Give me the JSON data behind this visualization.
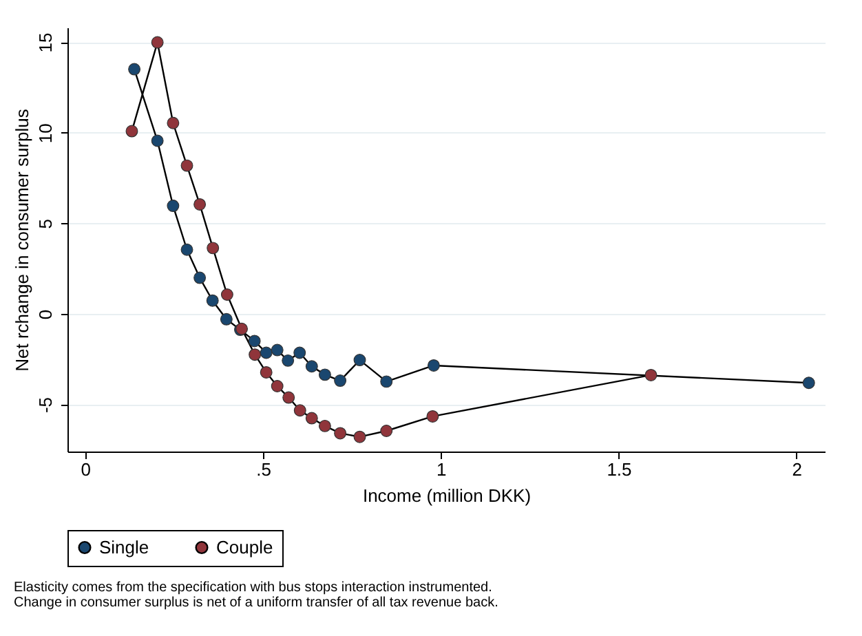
{
  "chart_data": {
    "type": "line",
    "xlabel": "Income (million DKK)",
    "ylabel": "Net rchange in consumer surplus",
    "xlim": [
      -0.05,
      2.08
    ],
    "xticks": [
      0,
      {
        "value": 0.5,
        "label": ".5"
      },
      1,
      1.5,
      2
    ],
    "ylim": [
      -7.6,
      15.8
    ],
    "yticks": [
      -5,
      0,
      5,
      10,
      15
    ],
    "grid": "y",
    "legend": "bottom",
    "marker": "circle",
    "series": [
      {
        "name": "Single",
        "color": "#1a476f",
        "x": [
          0.138,
          0.203,
          0.247,
          0.286,
          0.322,
          0.358,
          0.397,
          0.436,
          0.476,
          0.509,
          0.54,
          0.57,
          0.603,
          0.637,
          0.674,
          0.717,
          0.772,
          0.847,
          0.98,
          2.035
        ],
        "values": [
          13.5,
          9.55,
          5.96,
          3.54,
          1.99,
          0.73,
          -0.3,
          -0.88,
          -1.5,
          -2.15,
          -2.0,
          -2.58,
          -2.15,
          -2.9,
          -3.36,
          -3.69,
          -2.55,
          -3.74,
          -2.85,
          -3.81
        ]
      },
      {
        "name": "Couple",
        "color": "#90353b",
        "x": [
          0.131,
          0.203,
          0.247,
          0.286,
          0.322,
          0.359,
          0.399,
          0.44,
          0.477,
          0.509,
          0.54,
          0.572,
          0.604,
          0.637,
          0.674,
          0.717,
          0.772,
          0.847,
          0.977,
          1.591
        ],
        "values": [
          10.08,
          14.98,
          10.53,
          8.18,
          6.04,
          3.63,
          1.06,
          -0.83,
          -2.25,
          -3.23,
          -3.99,
          -4.62,
          -5.33,
          -5.76,
          -6.19,
          -6.59,
          -6.79,
          -6.46,
          -5.66,
          -3.38
        ]
      }
    ],
    "annotations": [
      "Elasticity comes from the specification with bus stops interaction instrumented.",
      "Change in consumer surplus is net of a uniform transfer of all tax revenue back."
    ]
  }
}
